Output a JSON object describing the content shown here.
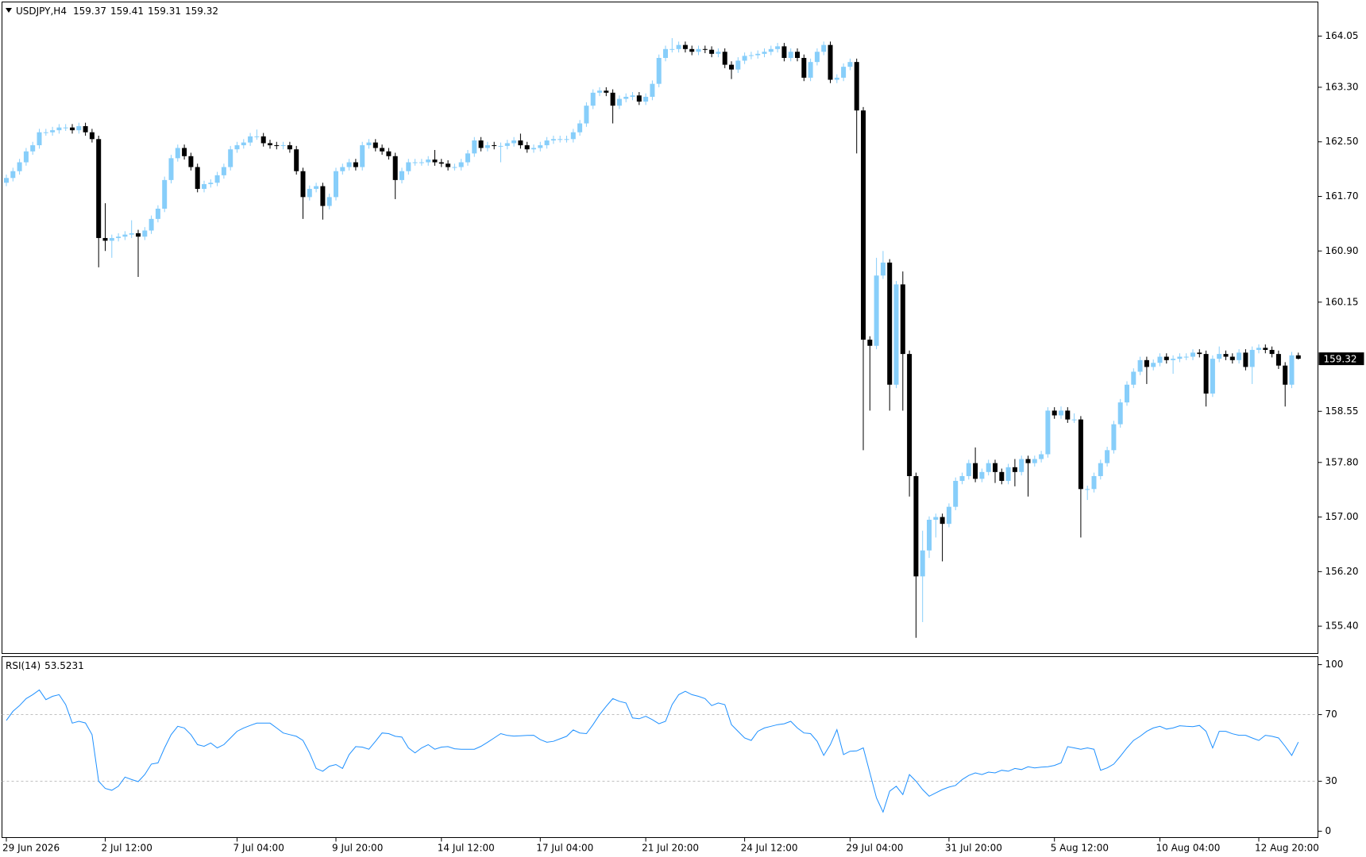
{
  "chart_data": [
    {
      "type": "candlestick",
      "title": "USDJPY,H4",
      "categories": [
        "29 Jun 2026",
        null,
        null,
        null,
        null,
        null,
        null,
        null,
        null,
        null,
        null,
        null,
        null,
        null,
        null,
        "2 Jul 12:00",
        null,
        null,
        null,
        null,
        null,
        null,
        null,
        null,
        null,
        null,
        null,
        null,
        null,
        null,
        null,
        null,
        null,
        null,
        null,
        "7 Jul 04:00",
        null,
        null,
        null,
        null,
        null,
        null,
        null,
        null,
        null,
        null,
        null,
        null,
        null,
        null,
        "9 Jul 20:00",
        null,
        null,
        null,
        null,
        null,
        null,
        null,
        null,
        null,
        null,
        null,
        null,
        null,
        null,
        null,
        "14 Jul 12:00",
        null,
        null,
        null,
        null,
        null,
        null,
        null,
        null,
        null,
        null,
        null,
        null,
        null,
        null,
        "17 Jul 04:00",
        null,
        null,
        null,
        null,
        null,
        null,
        null,
        null,
        null,
        null,
        null,
        null,
        null,
        null,
        null,
        "21 Jul 20:00",
        null,
        null,
        null,
        null,
        null,
        null,
        null,
        null,
        null,
        null,
        null,
        null,
        null,
        null,
        "24 Jul 12:00",
        null,
        null,
        null,
        null,
        null,
        null,
        null,
        null,
        null,
        null,
        null,
        null,
        null,
        null,
        null,
        "29 Jul 04:00",
        null,
        null,
        null,
        null,
        null,
        null,
        null,
        null,
        null,
        null,
        null,
        null,
        null,
        null,
        "31 Jul 20:00",
        null,
        null,
        null,
        null,
        null,
        null,
        null,
        null,
        null,
        null,
        null,
        null,
        null,
        null,
        null,
        "5 Aug 12:00",
        null,
        null,
        null,
        null,
        null,
        null,
        null,
        null,
        null,
        null,
        null,
        null,
        null,
        null,
        null,
        "10 Aug 04:00",
        null,
        null,
        null,
        null,
        null,
        null,
        null,
        null,
        null,
        null,
        null,
        null,
        null,
        null,
        "12 Aug 20:00",
        null,
        null,
        null,
        null,
        null,
        null
      ],
      "open": [
        161.9,
        161.97,
        162.07,
        162.2,
        162.36,
        162.45,
        162.64,
        162.64,
        162.67,
        162.71,
        162.71,
        162.67,
        162.73,
        162.64,
        162.54,
        161.09,
        161.05,
        161.09,
        161.11,
        161.14,
        161.16,
        161.11,
        161.2,
        161.37,
        161.52,
        161.94,
        162.26,
        162.41,
        162.29,
        162.13,
        161.81,
        161.88,
        161.9,
        162.01,
        162.13,
        162.39,
        162.45,
        162.49,
        162.58,
        162.58,
        162.48,
        162.45,
        162.44,
        162.45,
        162.39,
        162.07,
        161.69,
        161.81,
        161.85,
        161.56,
        161.69,
        162.07,
        162.13,
        162.2,
        162.13,
        162.45,
        162.49,
        162.41,
        162.36,
        162.29,
        161.94,
        162.07,
        162.2,
        162.2,
        162.2,
        162.24,
        162.2,
        162.18,
        162.13,
        162.13,
        162.2,
        162.33,
        162.52,
        162.41,
        162.45,
        162.44,
        162.44,
        162.48,
        162.52,
        162.45,
        162.39,
        162.41,
        162.45,
        162.52,
        162.54,
        162.54,
        162.54,
        162.64,
        162.77,
        163.03,
        163.22,
        163.25,
        163.22,
        163.03,
        163.13,
        163.16,
        163.18,
        163.09,
        163.16,
        163.35,
        163.73,
        163.86,
        163.86,
        163.92,
        163.86,
        163.82,
        163.86,
        163.85,
        163.79,
        163.82,
        163.63,
        163.56,
        163.69,
        163.76,
        163.77,
        163.79,
        163.82,
        163.86,
        163.9,
        163.73,
        163.82,
        163.73,
        163.44,
        163.67,
        163.82,
        163.92,
        163.41,
        163.44,
        163.6,
        163.67,
        162.96,
        159.6,
        159.51,
        160.54,
        160.73,
        158.94,
        160.41,
        159.39,
        157.6,
        156.13,
        156.51,
        156.96,
        157.0,
        156.9,
        157.15,
        157.53,
        157.6,
        157.79,
        157.56,
        157.66,
        157.79,
        157.66,
        157.53,
        157.73,
        157.66,
        157.85,
        157.79,
        157.85,
        157.92,
        158.56,
        158.49,
        158.56,
        158.43,
        158.43,
        157.41,
        157.41,
        157.6,
        157.79,
        157.98,
        158.36,
        158.68,
        158.94,
        159.13,
        159.3,
        159.2,
        159.26,
        159.35,
        159.3,
        159.32,
        159.35,
        159.35,
        159.41,
        159.39,
        158.81,
        159.32,
        159.39,
        159.35,
        159.3,
        159.41,
        159.2,
        159.45,
        159.48,
        159.45,
        159.39,
        159.22,
        158.94,
        159.37
      ],
      "high": [
        162.02,
        162.12,
        162.25,
        162.41,
        162.5,
        162.69,
        162.69,
        162.72,
        162.76,
        162.76,
        162.76,
        162.78,
        162.78,
        162.69,
        162.59,
        161.6,
        161.14,
        161.16,
        161.19,
        161.35,
        161.21,
        161.25,
        161.42,
        161.57,
        161.99,
        162.31,
        162.46,
        162.46,
        162.34,
        162.18,
        161.93,
        161.95,
        162.06,
        162.18,
        162.44,
        162.5,
        162.54,
        162.63,
        162.68,
        162.63,
        162.53,
        162.5,
        162.5,
        162.5,
        162.44,
        162.12,
        161.86,
        161.9,
        161.9,
        161.74,
        162.12,
        162.18,
        162.25,
        162.25,
        162.5,
        162.54,
        162.54,
        162.46,
        162.41,
        162.34,
        162.12,
        162.25,
        162.25,
        162.25,
        162.29,
        162.38,
        162.25,
        162.23,
        162.18,
        162.25,
        162.38,
        162.57,
        162.57,
        162.5,
        162.5,
        162.49,
        162.53,
        162.57,
        162.62,
        162.5,
        162.46,
        162.5,
        162.57,
        162.59,
        162.59,
        162.59,
        162.69,
        162.82,
        163.08,
        163.27,
        163.3,
        163.3,
        163.27,
        163.18,
        163.21,
        163.23,
        163.23,
        163.21,
        163.4,
        163.78,
        163.91,
        164.02,
        163.97,
        163.97,
        163.91,
        163.91,
        163.91,
        163.9,
        163.87,
        163.87,
        163.68,
        163.74,
        163.81,
        163.82,
        163.84,
        163.87,
        163.91,
        163.95,
        163.95,
        163.87,
        163.87,
        163.78,
        163.72,
        163.87,
        163.97,
        163.97,
        163.49,
        163.65,
        163.72,
        163.72,
        163.01,
        159.65,
        160.8,
        160.9,
        160.78,
        160.46,
        160.6,
        159.44,
        157.65,
        156.8,
        157.01,
        157.05,
        157.05,
        157.2,
        157.58,
        157.65,
        157.84,
        158.02,
        157.71,
        157.84,
        157.84,
        157.71,
        157.78,
        157.85,
        157.9,
        157.9,
        157.9,
        157.97,
        158.61,
        158.61,
        158.62,
        158.61,
        158.52,
        158.48,
        157.46,
        157.65,
        157.84,
        158.03,
        158.41,
        158.73,
        158.99,
        159.18,
        159.35,
        159.35,
        159.31,
        159.4,
        159.4,
        159.37,
        159.4,
        159.4,
        159.46,
        159.46,
        159.44,
        159.37,
        159.5,
        159.44,
        159.4,
        159.46,
        159.46,
        159.5,
        159.53,
        159.53,
        159.5,
        159.44,
        159.27,
        159.42,
        159.41
      ],
      "low": [
        161.85,
        161.92,
        162.02,
        162.15,
        162.31,
        162.4,
        162.59,
        162.59,
        162.62,
        162.66,
        162.62,
        162.62,
        162.59,
        162.49,
        160.66,
        160.9,
        160.8,
        161.04,
        161.06,
        161.09,
        160.52,
        161.06,
        161.15,
        161.32,
        161.47,
        161.89,
        162.21,
        162.24,
        162.08,
        161.76,
        161.76,
        161.83,
        161.85,
        161.96,
        162.08,
        162.34,
        162.4,
        162.44,
        162.53,
        162.43,
        162.4,
        162.39,
        162.39,
        162.34,
        162.02,
        161.37,
        161.64,
        161.76,
        161.36,
        161.51,
        161.64,
        162.02,
        162.08,
        162.08,
        162.08,
        162.4,
        162.36,
        162.31,
        162.24,
        161.66,
        161.89,
        162.02,
        162.15,
        162.15,
        162.15,
        162.15,
        162.13,
        162.08,
        162.08,
        162.08,
        162.15,
        162.28,
        162.36,
        162.36,
        162.39,
        162.2,
        162.39,
        162.43,
        162.4,
        162.34,
        162.34,
        162.36,
        162.4,
        162.47,
        162.49,
        162.49,
        162.49,
        162.59,
        162.72,
        162.98,
        163.17,
        163.17,
        162.77,
        162.98,
        163.08,
        163.11,
        163.04,
        163.04,
        163.11,
        163.3,
        163.68,
        163.81,
        163.81,
        163.81,
        163.77,
        163.77,
        163.8,
        163.74,
        163.74,
        163.58,
        163.42,
        163.51,
        163.64,
        163.71,
        163.72,
        163.74,
        163.77,
        163.81,
        163.68,
        163.68,
        163.68,
        163.39,
        163.39,
        163.62,
        163.77,
        163.36,
        163.36,
        163.39,
        163.55,
        162.33,
        157.98,
        158.56,
        159.46,
        160.49,
        158.56,
        158.89,
        158.56,
        157.3,
        155.23,
        155.46,
        156.4,
        156.7,
        156.35,
        156.85,
        157.1,
        157.48,
        157.55,
        157.51,
        157.51,
        157.61,
        157.5,
        157.48,
        157.48,
        157.45,
        157.61,
        157.3,
        157.74,
        157.8,
        157.87,
        158.44,
        158.44,
        158.38,
        158.38,
        156.7,
        157.25,
        157.36,
        157.55,
        157.74,
        157.93,
        158.31,
        158.63,
        158.89,
        159.08,
        158.95,
        159.15,
        159.21,
        159.25,
        159.1,
        159.27,
        159.3,
        159.3,
        159.34,
        158.62,
        158.76,
        159.27,
        159.3,
        159.25,
        159.25,
        159.15,
        158.95,
        159.4,
        159.4,
        159.34,
        159.17,
        158.62,
        158.89,
        159.31
      ],
      "close": [
        161.97,
        162.07,
        162.2,
        162.36,
        162.45,
        162.64,
        162.64,
        162.67,
        162.71,
        162.71,
        162.67,
        162.73,
        162.64,
        162.54,
        161.09,
        161.05,
        161.09,
        161.11,
        161.14,
        161.16,
        161.11,
        161.2,
        161.37,
        161.52,
        161.94,
        162.26,
        162.41,
        162.29,
        162.13,
        161.81,
        161.88,
        161.9,
        162.01,
        162.13,
        162.39,
        162.45,
        162.49,
        162.58,
        162.58,
        162.48,
        162.45,
        162.44,
        162.45,
        162.39,
        162.07,
        161.69,
        161.81,
        161.85,
        161.56,
        161.69,
        162.07,
        162.13,
        162.2,
        162.13,
        162.45,
        162.49,
        162.41,
        162.36,
        162.29,
        161.94,
        162.07,
        162.2,
        162.2,
        162.2,
        162.24,
        162.2,
        162.18,
        162.13,
        162.13,
        162.2,
        162.33,
        162.52,
        162.41,
        162.45,
        162.44,
        162.44,
        162.48,
        162.52,
        162.45,
        162.39,
        162.41,
        162.45,
        162.52,
        162.54,
        162.54,
        162.54,
        162.64,
        162.77,
        163.03,
        163.22,
        163.25,
        163.22,
        163.03,
        163.13,
        163.16,
        163.18,
        163.09,
        163.16,
        163.35,
        163.73,
        163.86,
        163.86,
        163.92,
        163.86,
        163.82,
        163.86,
        163.85,
        163.79,
        163.82,
        163.63,
        163.56,
        163.69,
        163.76,
        163.77,
        163.79,
        163.82,
        163.86,
        163.9,
        163.73,
        163.82,
        163.73,
        163.44,
        163.67,
        163.82,
        163.92,
        163.41,
        163.44,
        163.6,
        163.67,
        162.96,
        159.6,
        159.51,
        160.54,
        160.73,
        158.94,
        160.41,
        159.39,
        157.6,
        156.13,
        156.51,
        156.96,
        157.0,
        156.9,
        157.15,
        157.53,
        157.6,
        157.79,
        157.56,
        157.66,
        157.79,
        157.66,
        157.53,
        157.73,
        157.66,
        157.85,
        157.79,
        157.85,
        157.92,
        158.56,
        158.49,
        158.56,
        158.43,
        158.43,
        157.41,
        157.41,
        157.6,
        157.79,
        157.98,
        158.36,
        158.68,
        158.94,
        159.13,
        159.3,
        159.2,
        159.26,
        159.35,
        159.3,
        159.32,
        159.35,
        159.35,
        159.41,
        159.39,
        158.81,
        159.32,
        159.39,
        159.35,
        159.3,
        159.41,
        159.2,
        159.45,
        159.48,
        159.45,
        159.39,
        159.22,
        158.94,
        159.37,
        159.32
      ],
      "up_color": "#87cefa",
      "down_color": "#000000",
      "ylim": [
        155.0,
        164.55
      ],
      "yticks": [
        164.05,
        {
          "value": 163.3,
          "label": "163.30"
        },
        {
          "value": 162.5,
          "label": "162.50"
        },
        {
          "value": 161.7,
          "label": "161.70"
        },
        {
          "value": 160.9,
          "label": "160.90"
        },
        160.15,
        158.55,
        {
          "value": 157.8,
          "label": "157.80"
        },
        {
          "value": 157.0,
          "label": "157.00"
        },
        {
          "value": 156.2,
          "label": "156.20"
        },
        {
          "value": 155.4,
          "label": "155.40"
        }
      ]
    },
    {
      "type": "line",
      "title": "RSI(14)",
      "values": [
        66.5,
        72,
        75.4,
        79.6,
        82,
        84.8,
        79,
        81,
        82,
        76,
        64.9,
        66,
        65,
        58,
        30,
        25.7,
        24.6,
        27,
        32.5,
        31,
        29.8,
        34,
        40.3,
        41,
        50,
        58,
        63,
        62,
        58,
        52,
        51,
        53,
        50,
        52,
        56,
        60,
        62,
        63.5,
        64.9,
        64.9,
        64.9,
        62,
        59,
        58,
        57,
        54.5,
        47,
        37.7,
        36,
        39,
        40,
        37.7,
        46,
        50.8,
        50.5,
        49.2,
        54,
        59,
        58.6,
        57,
        56.5,
        50,
        47,
        50,
        52,
        49.2,
        50.5,
        50.8,
        49.5,
        49.2,
        49.2,
        49.2,
        51,
        53.4,
        56,
        58.6,
        57.5,
        57.1,
        57.3,
        57.5,
        57.6,
        55,
        53.4,
        54,
        55.5,
        57,
        60.8,
        59,
        58.6,
        64,
        70,
        75,
        79.6,
        78,
        77,
        68,
        67.5,
        69,
        67,
        64.5,
        66,
        76,
        82,
        84,
        82,
        81,
        79.6,
        75.4,
        77,
        76,
        64,
        60,
        56,
        54.5,
        60,
        62,
        63,
        64,
        64.5,
        66,
        62,
        59,
        58.6,
        54,
        45.5,
        52,
        61,
        46,
        48,
        48.2,
        50,
        35,
        20,
        11.5,
        24,
        27,
        22,
        34,
        30,
        25,
        21,
        23,
        25,
        26.5,
        27.5,
        31,
        33.5,
        35,
        34,
        35.5,
        35,
        36.6,
        36,
        37.7,
        37,
        38.7,
        38,
        38.5,
        38.7,
        39.5,
        41,
        50.8,
        50,
        49.2,
        50,
        49.2,
        36.6,
        38,
        40.3,
        45,
        50,
        54.5,
        57,
        60,
        62,
        63,
        61.3,
        62,
        63.3,
        63,
        62.8,
        63.5,
        60,
        50,
        60,
        60,
        58.5,
        57.6,
        57.6,
        56,
        54.5,
        57.6,
        57,
        56,
        51,
        45.5,
        53.5231
      ],
      "color": "#1e90ff",
      "level_color": "#c0c0c0",
      "levels": [
        30,
        70
      ],
      "ylim": [
        -3.8,
        104.8
      ],
      "yticks": [
        0,
        30,
        70,
        100
      ]
    }
  ]
}
